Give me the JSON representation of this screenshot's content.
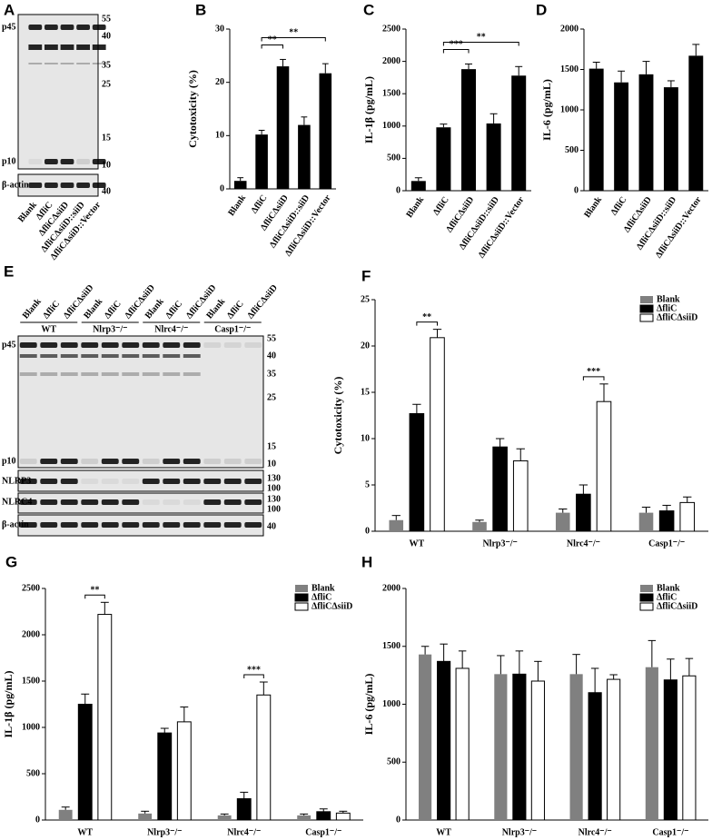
{
  "blots": [
    {
      "panel_label": "A",
      "lanes": [
        "Blank",
        "ΔfliC",
        "ΔfliCΔsiiD",
        "ΔfliCΔsiiD::siiD",
        "ΔfliCΔsiiD::Vector"
      ],
      "rows": [
        "p45",
        "p10",
        "β-actin"
      ],
      "markers": [
        55,
        40,
        35,
        25,
        15,
        10,
        40
      ]
    },
    {
      "panel_label": "E",
      "groups": [
        {
          "name": "WT",
          "lanes": [
            "Blank",
            "ΔfliC",
            "ΔfliCΔsiiD"
          ]
        },
        {
          "name": "Nlrp3⁻/⁻",
          "lanes": [
            "Blank",
            "ΔfliC",
            "ΔfliCΔsiiD"
          ]
        },
        {
          "name": "Nlrc4⁻/⁻",
          "lanes": [
            "Blank",
            "ΔfliC",
            "ΔfliCΔsiiD"
          ]
        },
        {
          "name": "Casp1⁻/⁻",
          "lanes": [
            "Blank",
            "ΔfliC",
            "ΔfliCΔsiiD"
          ]
        }
      ],
      "rows": [
        "p45",
        "p10",
        "NLRP3",
        "NLRC4",
        "β-actin"
      ],
      "markers": [
        55,
        40,
        35,
        25,
        15,
        10,
        130,
        100,
        130,
        100,
        40
      ]
    }
  ],
  "chart_data": [
    {
      "type": "bar",
      "panel_label": "B",
      "y_label": "Cytotoxicity (%)",
      "categories": [
        "Blank",
        "ΔfliC",
        "ΔfliCΔsiiD",
        "ΔfliCΔsiiD::siiD",
        "ΔfliCΔsiiD::Vector"
      ],
      "values": [
        1.5,
        10.2,
        23,
        12,
        21.7
      ],
      "errors": [
        0.6,
        0.8,
        1.3,
        1.5,
        1.8
      ],
      "color": "#000000",
      "ylim": [
        0,
        30
      ],
      "yticks": [
        0,
        10,
        20,
        30
      ],
      "annotations": [
        {
          "text": "**",
          "between": [
            "ΔfliC",
            "ΔfliCΔsiiD"
          ]
        },
        {
          "text": "**",
          "between": [
            "ΔfliC",
            "ΔfliCΔsiiD::Vector"
          ]
        }
      ]
    },
    {
      "type": "bar",
      "panel_label": "C",
      "y_label": "IL-1β (pg/mL)",
      "categories": [
        "Blank",
        "ΔfliC",
        "ΔfliCΔsiiD",
        "ΔfliCΔsiiD::siiD",
        "ΔfliCΔsiiD::Vector"
      ],
      "values": [
        150,
        980,
        1880,
        1040,
        1780
      ],
      "errors": [
        50,
        50,
        80,
        150,
        140
      ],
      "color": "#000000",
      "ylim": [
        0,
        2500
      ],
      "yticks": [
        0,
        500,
        1000,
        1500,
        2000,
        2500
      ],
      "annotations": [
        {
          "text": "***",
          "between": [
            "ΔfliC",
            "ΔfliCΔsiiD"
          ]
        },
        {
          "text": "**",
          "between": [
            "ΔfliC",
            "ΔfliCΔsiiD::Vector"
          ]
        }
      ]
    },
    {
      "type": "bar",
      "panel_label": "D",
      "y_label": "IL-6 (pg/mL)",
      "categories": [
        "Blank",
        "ΔfliC",
        "ΔfliCΔsiiD",
        "ΔfliCΔsiiD::siiD",
        "ΔfliCΔsiiD::Vector"
      ],
      "values": [
        1510,
        1340,
        1440,
        1280,
        1670
      ],
      "errors": [
        80,
        140,
        160,
        80,
        140
      ],
      "color": "#000000",
      "ylim": [
        0,
        2000
      ],
      "yticks": [
        0,
        500,
        1000,
        1500,
        2000
      ],
      "annotations": []
    },
    {
      "type": "grouped_bar",
      "panel_label": "F",
      "y_label": "Cytotoxicity (%)",
      "categories": [
        "WT",
        "Nlrp3⁻/⁻",
        "Nlrc4⁻/⁻",
        "Casp1⁻/⁻"
      ],
      "series": [
        {
          "name": "Blank",
          "color": "#808080",
          "values": [
            1.2,
            1.0,
            2.0,
            2.0
          ],
          "errors": [
            0.5,
            0.2,
            0.4,
            0.6
          ]
        },
        {
          "name": "ΔfliC",
          "color": "#000000",
          "values": [
            12.7,
            9.1,
            4.0,
            2.2
          ],
          "errors": [
            1.0,
            0.9,
            1.0,
            0.6
          ]
        },
        {
          "name": "ΔfliCΔsiiD",
          "color": "#ffffff",
          "values": [
            20.9,
            7.6,
            14.0,
            3.1
          ],
          "errors": [
            0.9,
            1.3,
            1.9,
            0.6
          ]
        }
      ],
      "ylim": [
        0,
        25
      ],
      "yticks": [
        0,
        5,
        10,
        15,
        20,
        25
      ],
      "annotations": [
        {
          "text": "**",
          "category": "WT",
          "between": [
            "ΔfliC",
            "ΔfliCΔsiiD"
          ]
        },
        {
          "text": "***",
          "category": "Nlrc4⁻/⁻",
          "between": [
            "ΔfliC",
            "ΔfliCΔsiiD"
          ]
        }
      ]
    },
    {
      "type": "grouped_bar",
      "panel_label": "G",
      "y_label": "IL-1β (pg/mL)",
      "categories": [
        "WT",
        "Nlrp3⁻/⁻",
        "Nlrc4⁻/⁻",
        "Casp1⁻/⁻"
      ],
      "series": [
        {
          "name": "Blank",
          "color": "#808080",
          "values": [
            110,
            70,
            50,
            50
          ],
          "errors": [
            30,
            25,
            15,
            15
          ]
        },
        {
          "name": "ΔfliC",
          "color": "#000000",
          "values": [
            1250,
            940,
            230,
            90
          ],
          "errors": [
            110,
            50,
            70,
            30
          ]
        },
        {
          "name": "ΔfliCΔsiiD",
          "color": "#ffffff",
          "values": [
            2220,
            1060,
            1350,
            75
          ],
          "errors": [
            130,
            160,
            140,
            20
          ]
        }
      ],
      "ylim": [
        0,
        2500
      ],
      "yticks": [
        0,
        500,
        1000,
        1500,
        2000,
        2500
      ],
      "annotations": [
        {
          "text": "**",
          "category": "WT",
          "between": [
            "ΔfliC",
            "ΔfliCΔsiiD"
          ]
        },
        {
          "text": "***",
          "category": "Nlrc4⁻/⁻",
          "between": [
            "ΔfliC",
            "ΔfliCΔsiiD"
          ]
        }
      ]
    },
    {
      "type": "grouped_bar",
      "panel_label": "H",
      "y_label": "IL-6 (pg/mL)",
      "categories": [
        "WT",
        "Nlrp3⁻/⁻",
        "Nlrc4⁻/⁻",
        "Casp1⁻/⁻"
      ],
      "series": [
        {
          "name": "Blank",
          "color": "#808080",
          "values": [
            1430,
            1260,
            1260,
            1320
          ],
          "errors": [
            70,
            160,
            170,
            230
          ]
        },
        {
          "name": "ΔfliC",
          "color": "#000000",
          "values": [
            1370,
            1260,
            1100,
            1210
          ],
          "errors": [
            150,
            200,
            210,
            180
          ]
        },
        {
          "name": "ΔfliCΔsiiD",
          "color": "#ffffff",
          "values": [
            1310,
            1200,
            1215,
            1245
          ],
          "errors": [
            150,
            170,
            40,
            150
          ]
        }
      ],
      "ylim": [
        0,
        2000
      ],
      "yticks": [
        0,
        500,
        1000,
        1500,
        2000
      ],
      "annotations": []
    }
  ]
}
